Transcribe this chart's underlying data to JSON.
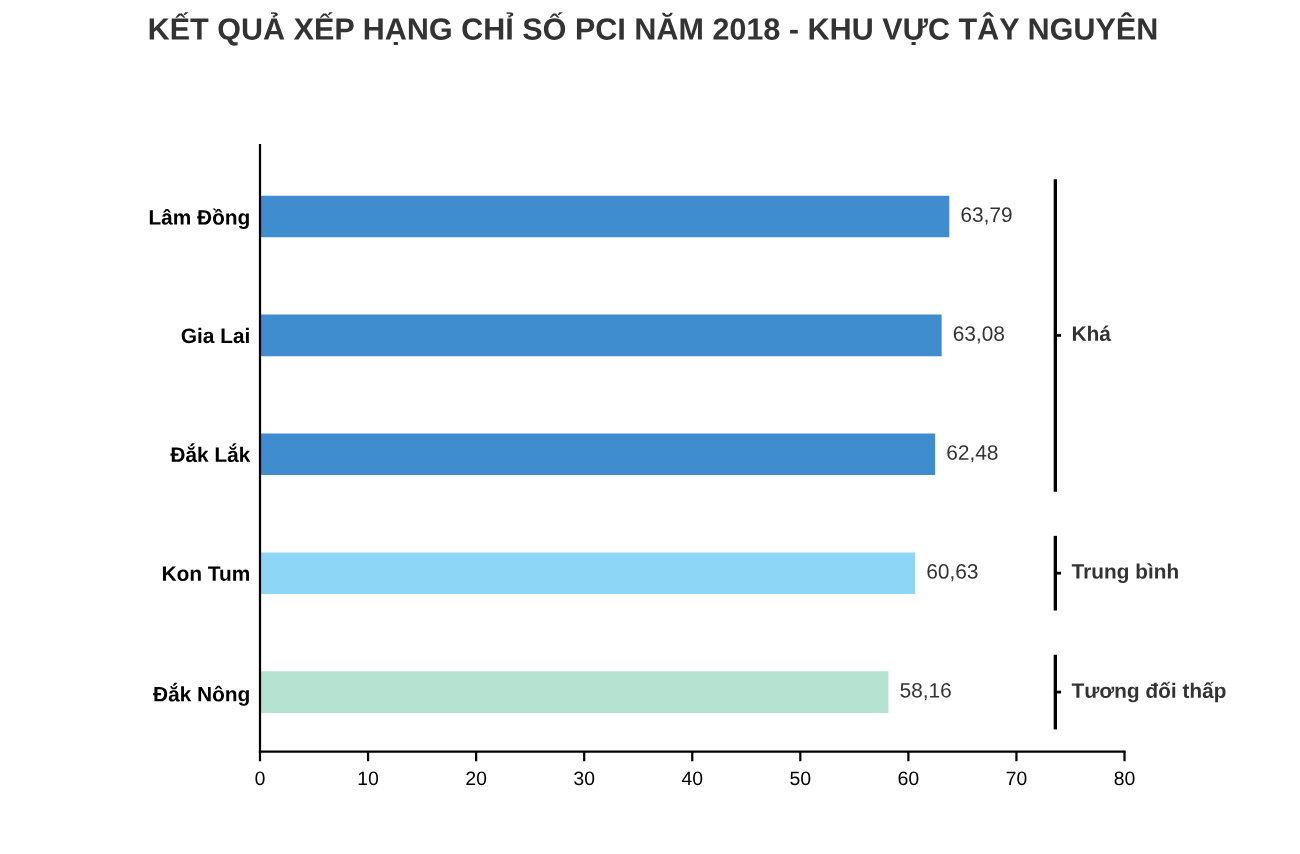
{
  "chart_data": {
    "type": "bar",
    "orientation": "horizontal",
    "title": "KẾT QUẢ XẾP HẠNG CHỈ SỐ PCI NĂM 2018 - KHU VỰC TÂY NGUYÊN",
    "categories": [
      "Lâm Đồng",
      "Gia Lai",
      "Đắk Lắk",
      "Kon Tum",
      "Đắk Nông"
    ],
    "values": [
      63.79,
      63.08,
      62.48,
      60.63,
      58.16
    ],
    "colors": [
      "#3f8ccf",
      "#3f8ccf",
      "#3f8ccf",
      "#8dd6f5",
      "#b6e2d2"
    ],
    "value_labels": [
      "63,79",
      "63,08",
      "62,48",
      "60,63",
      "58,16"
    ],
    "xlim": [
      0,
      80
    ],
    "xticks": [
      0,
      10,
      20,
      30,
      40,
      50,
      60,
      70,
      80
    ],
    "grid": false,
    "legend": false,
    "annotations": [
      "Khá",
      "Trung bình",
      "Tương đối thấp"
    ]
  }
}
